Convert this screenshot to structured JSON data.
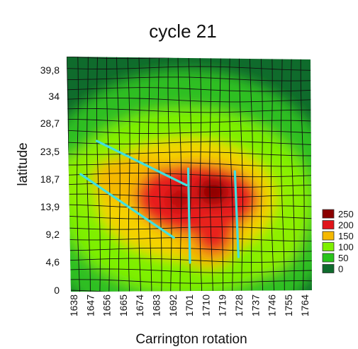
{
  "chart_data": {
    "type": "heatmap",
    "title": "cycle 21",
    "xlabel": "Carrington rotation",
    "ylabel": "latitude",
    "x_ticks": [
      "1638",
      "1647",
      "1656",
      "1665",
      "1674",
      "1683",
      "1692",
      "1701",
      "1710",
      "1719",
      "1728",
      "1737",
      "1746",
      "1755",
      "1764"
    ],
    "y_ticks": [
      "0",
      "4,6",
      "9,2",
      "13,9",
      "18,7",
      "23,5",
      "28,7",
      "34",
      "39,8"
    ],
    "legend": [
      {
        "label": "250",
        "color": "#8b0000"
      },
      {
        "label": "200",
        "color": "#e0141a"
      },
      {
        "label": "150",
        "color": "#f5b800"
      },
      {
        "label": "100",
        "color": "#7ef000"
      },
      {
        "label": "50",
        "color": "#29c41a"
      },
      {
        "label": "0",
        "color": "#0f6b2c"
      }
    ],
    "levels": [
      0,
      50,
      100,
      150,
      200,
      250
    ],
    "grid": true,
    "cyan_lines": [
      {
        "x1": 1650,
        "y1": 27,
        "x2": 1700,
        "y2": 19
      },
      {
        "x1": 1641,
        "y1": 21,
        "x2": 1693,
        "y2": 9.5
      },
      {
        "x1": 1701,
        "y1": 22,
        "x2": 1702,
        "y2": 5
      },
      {
        "x1": 1727,
        "y1": 21.5,
        "x2": 1729,
        "y2": 6
      }
    ]
  }
}
